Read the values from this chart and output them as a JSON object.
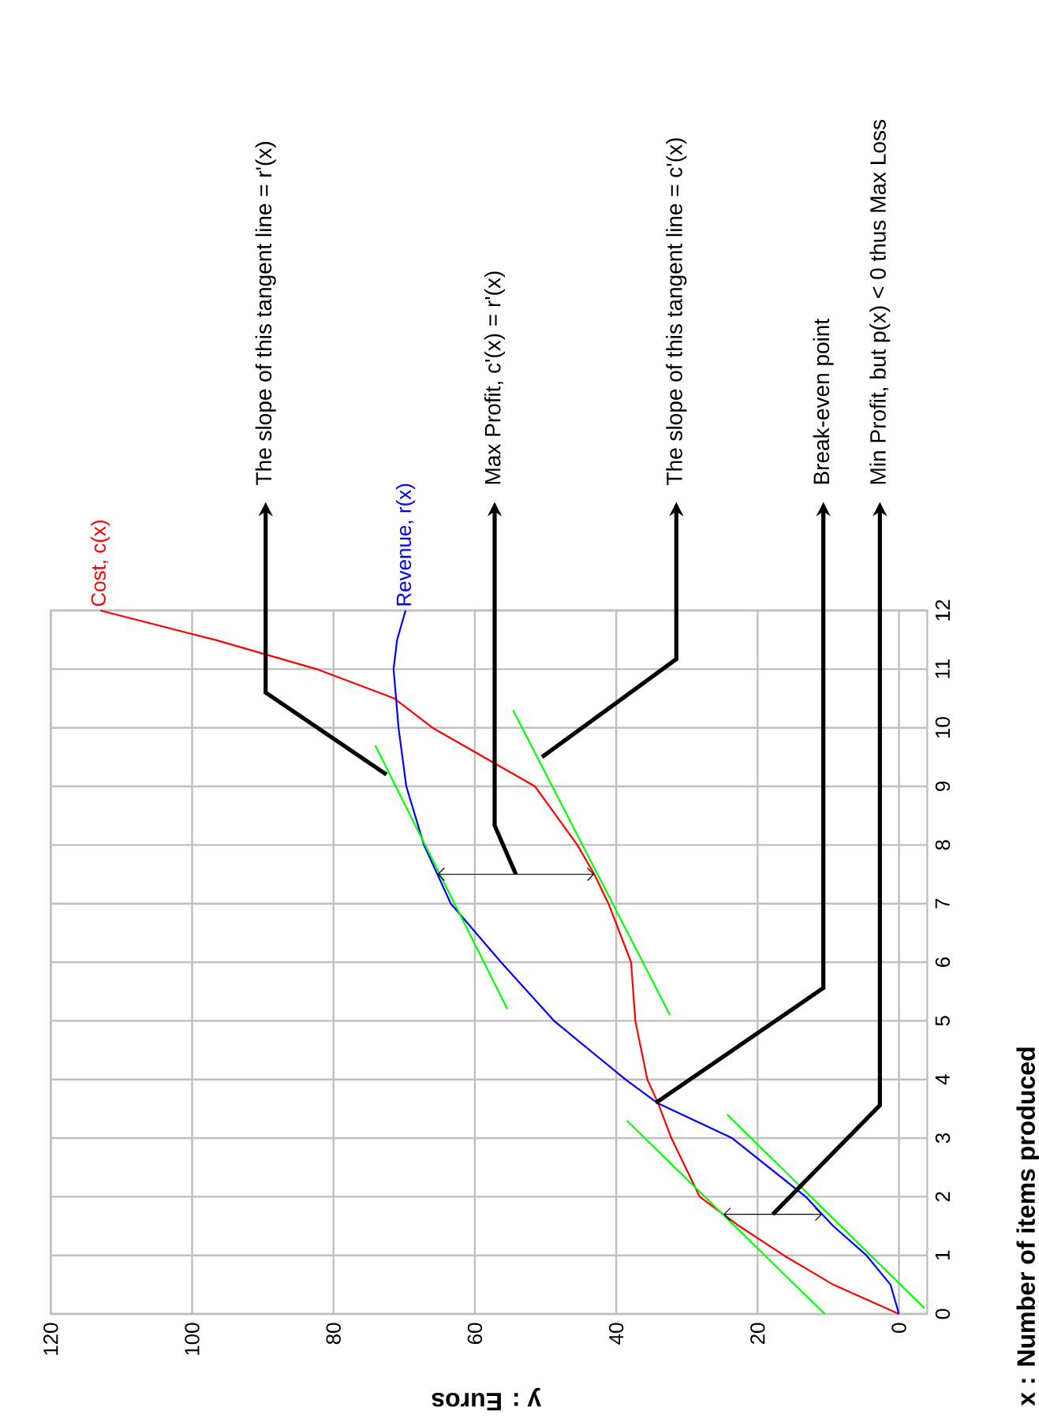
{
  "chart_data": {
    "type": "line",
    "xlabel": "y : Euros",
    "ylabel": "x : Number of items produced",
    "xlim": [
      120,
      -4
    ],
    "ylim": [
      0,
      12
    ],
    "xticks": [
      120,
      100,
      80,
      60,
      40,
      20,
      0
    ],
    "yticks": [
      0,
      1,
      2,
      3,
      4,
      5,
      6,
      7,
      8,
      9,
      10,
      11,
      12
    ],
    "grid": true,
    "marker": "none",
    "series": [
      {
        "name": "Cost, c(x)",
        "color": "#ff0000",
        "x": [
          0,
          9.3,
          16.3,
          22.6,
          28.2,
          32.2,
          34.1,
          35.6,
          37.3,
          37.9,
          41.1,
          43.1,
          45.5,
          51.5,
          66,
          71.4,
          82.4,
          96.8,
          113
        ],
        "values": [
          0,
          0.5,
          1,
          1.5,
          2,
          3,
          3.6,
          4,
          5,
          6,
          7,
          7.5,
          8,
          9,
          10,
          10.5,
          11,
          11.5,
          12
        ]
      },
      {
        "name": "Revenue, r(x)",
        "color": "#0000ff",
        "x": [
          0,
          1.2,
          4.6,
          9.3,
          13.2,
          23.6,
          34.2,
          38.7,
          48.8,
          56.3,
          63.4,
          67.2,
          69.7,
          70.8,
          71.5,
          71.0,
          69.8
        ],
        "values": [
          0,
          0.5,
          1,
          1.5,
          2,
          3,
          3.6,
          4,
          5,
          6,
          7,
          8,
          9,
          10,
          11,
          11.5,
          12
        ]
      },
      {
        "color": "#00ff00",
        "x": [
          10.5,
          38.5
        ],
        "values": [
          0,
          3.3
        ]
      },
      {
        "color": "#00ff00",
        "x": [
          -3.6,
          24.3
        ],
        "values": [
          0.1,
          3.4
        ]
      },
      {
        "color": "#00ff00",
        "x": [
          55.4,
          74.1
        ],
        "values": [
          5.2,
          9.7
        ]
      },
      {
        "color": "#00ff00",
        "x": [
          32.4,
          54.6
        ],
        "values": [
          5.1,
          10.3
        ]
      }
    ],
    "annotations": [
      {
        "text": "The slope of this tangent line = r'(x)",
        "x": 72.5,
        "y": 9.2
      },
      "Max Profit, c'(x) = r'(x)",
      {
        "text": "The slope of this tangent line = c'(x)",
        "x": 50.5,
        "y": 9.5
      },
      {
        "text": "Break-even point",
        "x": 34.4,
        "y": 3.6
      },
      "Min Profit, but p(x) < 0 thus Max Loss"
    ]
  }
}
